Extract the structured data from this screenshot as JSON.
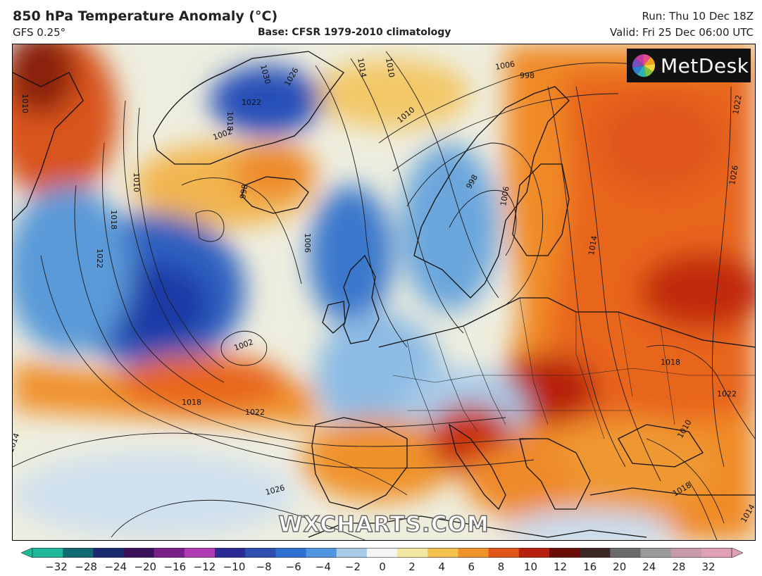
{
  "header": {
    "title": "850 hPa Temperature Anomaly (°C)",
    "model": "GFS 0.25°",
    "base": "Base: CFSR 1979-2010 climatology",
    "run": "Run: Thu 10 Dec 18Z",
    "valid": "Valid: Fri 25 Dec 06:00 UTC"
  },
  "logo": {
    "text": "MetDesk",
    "icon": "metdesk-pinwheel-icon"
  },
  "watermark": "WXCHARTS.COM",
  "colorbar": {
    "ticks": [
      "−32",
      "−28",
      "−24",
      "−20",
      "−16",
      "−12",
      "−10",
      "−8",
      "−6",
      "−4",
      "−2",
      "0",
      "2",
      "4",
      "6",
      "8",
      "10",
      "12",
      "16",
      "20",
      "24",
      "28",
      "32"
    ],
    "colors": [
      "#1fb89a",
      "#0f6a72",
      "#1b2a6e",
      "#3b0f5a",
      "#7a1f8a",
      "#b13bb5",
      "#2b2b95",
      "#2f4fb0",
      "#2f6fcf",
      "#4f95e0",
      "#a8cbe8",
      "#f4f4f4",
      "#f3e6a0",
      "#f5c250",
      "#f0922a",
      "#e0561a",
      "#b8200e",
      "#6a0d08",
      "#3a2622",
      "#6a6a6a",
      "#9a9a9a",
      "#c89aa8",
      "#e0a0b8"
    ]
  },
  "isobars": {
    "labels": [
      "1010",
      "1018",
      "1030",
      "1026",
      "1022",
      "1014",
      "1010",
      "1006",
      "998",
      "1002",
      "998",
      "1010",
      "1018",
      "1022",
      "1006",
      "1010",
      "998",
      "1006",
      "1014",
      "1022",
      "1026",
      "1002",
      "1018",
      "1022",
      "1014",
      "1026",
      "1018",
      "1022",
      "1010",
      "1018",
      "1014"
    ]
  },
  "map": {
    "colors": {
      "deep_blue": "#1e40a8",
      "blue": "#3d7fd0",
      "light_blue": "#a8cbe8",
      "pale": "#efeede",
      "yellow": "#f3d77a",
      "orange": "#f29a30",
      "dark_orange": "#e0601e",
      "red": "#c4300f",
      "dark_red": "#7a1a0c"
    }
  }
}
